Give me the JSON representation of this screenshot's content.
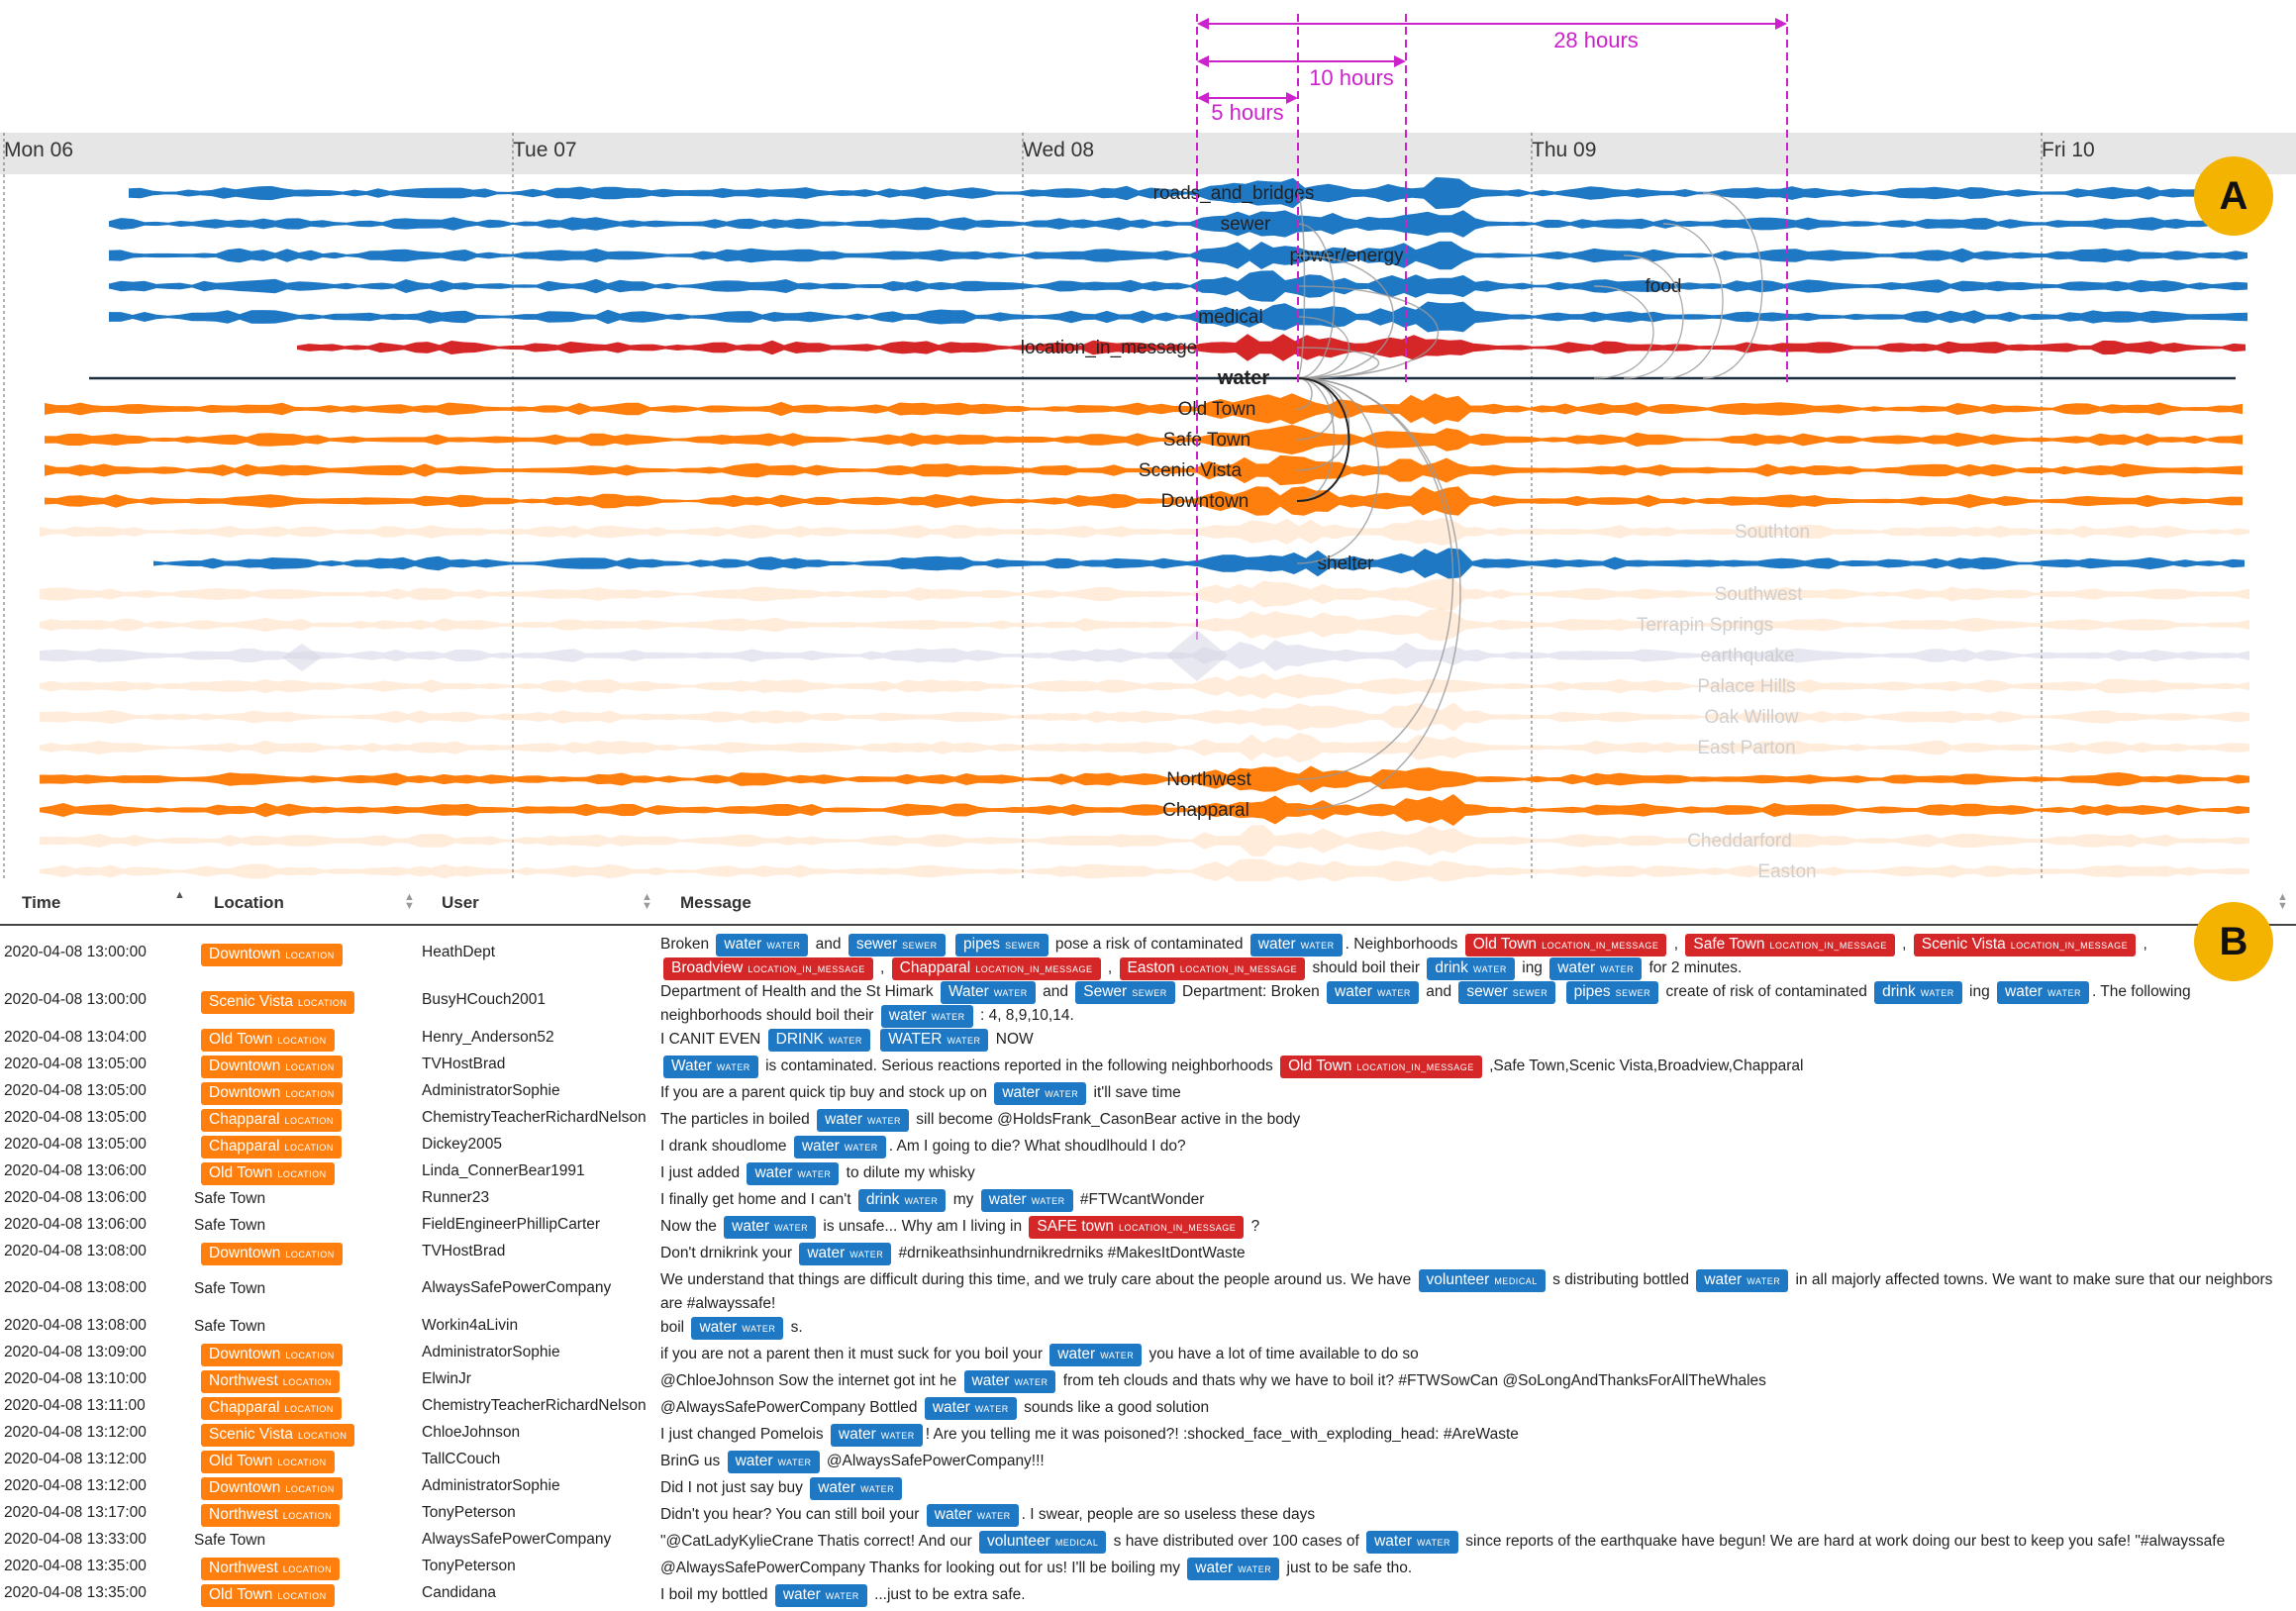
{
  "axis": {
    "days": [
      "Mon 06",
      "Tue 07",
      "Wed 08",
      "Thu 09",
      "Fri 10"
    ]
  },
  "annotations": {
    "spans": [
      "28 hours",
      "10 hours",
      "5 hours"
    ],
    "panel_a": "A",
    "panel_b": "B"
  },
  "streams": {
    "labels": [
      "roads_and_bridges",
      "sewer",
      "power/energy",
      "food",
      "medical",
      "location_in_message",
      "water",
      "Old Town",
      "Safe Town",
      "Scenic Vista",
      "Downtown",
      "Southton",
      "shelter",
      "Southwest",
      "Terrapin Springs",
      "earthquake",
      "Palace Hills",
      "Oak Willow",
      "East Parton",
      "Northwest",
      "Chapparal",
      "Cheddarford",
      "Easton"
    ]
  },
  "colors": {
    "topic": "#1f78c4",
    "location_in_message": "#d62728",
    "location": "#ff7f0e",
    "dashed_marker": "#cc22cc",
    "badge": "#f5b301"
  },
  "table": {
    "headers": {
      "time": "Time",
      "location": "Location",
      "user": "User",
      "message": "Message"
    },
    "location_tag": "location",
    "rows": [
      {
        "time": "2020-04-08 13:00:00",
        "location": "Downtown",
        "loc_tagged": true,
        "user": "HeathDept",
        "msg": [
          [
            "t",
            "Broken "
          ],
          [
            "b",
            "water",
            "water"
          ],
          [
            "t",
            " and "
          ],
          [
            "b",
            "sewer",
            "sewer"
          ],
          [
            "t",
            " "
          ],
          [
            "b",
            "pipes",
            "sewer"
          ],
          [
            "t",
            " pose a risk of contaminated "
          ],
          [
            "b",
            "water",
            "water"
          ],
          [
            "t",
            ". Neighborhoods "
          ],
          [
            "r",
            "Old Town",
            "location_in_message"
          ],
          [
            "t",
            " , "
          ],
          [
            "r",
            "Safe Town",
            "location_in_message"
          ],
          [
            "t",
            " , "
          ],
          [
            "r",
            "Scenic Vista",
            "location_in_message"
          ],
          [
            "t",
            " , "
          ],
          [
            "r",
            "Broadview",
            "location_in_message"
          ],
          [
            "t",
            " , "
          ],
          [
            "r",
            "Chapparal",
            "location_in_message"
          ],
          [
            "t",
            " , "
          ],
          [
            "r",
            "Easton",
            "location_in_message"
          ],
          [
            "t",
            " should boil their "
          ],
          [
            "b",
            "drink",
            "water"
          ],
          [
            "t",
            " ing "
          ],
          [
            "b",
            "water",
            "water"
          ],
          [
            "t",
            " for 2 minutes."
          ]
        ]
      },
      {
        "time": "2020-04-08 13:00:00",
        "location": "Scenic Vista",
        "loc_tagged": true,
        "user": "BusyHCouch2001",
        "msg": [
          [
            "t",
            "Department of Health and the St Himark "
          ],
          [
            "b",
            "Water",
            "water"
          ],
          [
            "t",
            " and "
          ],
          [
            "b",
            "Sewer",
            "sewer"
          ],
          [
            "t",
            " Department: Broken "
          ],
          [
            "b",
            "water",
            "water"
          ],
          [
            "t",
            " and "
          ],
          [
            "b",
            "sewer",
            "sewer"
          ],
          [
            "t",
            " "
          ],
          [
            "b",
            "pipes",
            "sewer"
          ],
          [
            "t",
            " create of risk of contaminated "
          ],
          [
            "b",
            "drink",
            "water"
          ],
          [
            "t",
            " ing "
          ],
          [
            "b",
            "water",
            "water"
          ],
          [
            "t",
            ". The following neighborhoods should boil their "
          ],
          [
            "b",
            "water",
            "water"
          ],
          [
            "t",
            " : 4, 8,9,10,14."
          ]
        ]
      },
      {
        "time": "2020-04-08 13:04:00",
        "location": "Old Town",
        "loc_tagged": true,
        "user": "Henry_Anderson52",
        "msg": [
          [
            "t",
            "I CANIT EVEN "
          ],
          [
            "b",
            "DRINK",
            "water"
          ],
          [
            "t",
            " "
          ],
          [
            "b",
            "WATER",
            "water"
          ],
          [
            "t",
            " NOW"
          ]
        ]
      },
      {
        "time": "2020-04-08 13:05:00",
        "location": "Downtown",
        "loc_tagged": true,
        "user": "TVHostBrad",
        "msg": [
          [
            "b",
            "Water",
            "water"
          ],
          [
            "t",
            " is contaminated. Serious reactions reported in the following neighborhoods "
          ],
          [
            "r",
            "Old Town",
            "location_in_message"
          ],
          [
            "t",
            " ,Safe Town,Scenic Vista,Broadview,Chapparal"
          ]
        ]
      },
      {
        "time": "2020-04-08 13:05:00",
        "location": "Downtown",
        "loc_tagged": true,
        "user": "AdministratorSophie",
        "msg": [
          [
            "t",
            "If you are a parent quick tip buy and stock up on "
          ],
          [
            "b",
            "water",
            "water"
          ],
          [
            "t",
            " it'll save time"
          ]
        ]
      },
      {
        "time": "2020-04-08 13:05:00",
        "location": "Chapparal",
        "loc_tagged": true,
        "user": "ChemistryTeacherRichardNelson",
        "msg": [
          [
            "t",
            "The particles in boiled "
          ],
          [
            "b",
            "water",
            "water"
          ],
          [
            "t",
            " sill become @HoldsFrank_CasonBear active in the body"
          ]
        ]
      },
      {
        "time": "2020-04-08 13:05:00",
        "location": "Chapparal",
        "loc_tagged": true,
        "user": "Dickey2005",
        "msg": [
          [
            "t",
            "I drank shoudlome "
          ],
          [
            "b",
            "water",
            "water"
          ],
          [
            "t",
            ". Am I going to die? What shoudlhould I do?"
          ]
        ]
      },
      {
        "time": "2020-04-08 13:06:00",
        "location": "Old Town",
        "loc_tagged": true,
        "user": "Linda_ConnerBear1991",
        "msg": [
          [
            "t",
            "I just added "
          ],
          [
            "b",
            "water",
            "water"
          ],
          [
            "t",
            " to dilute my whisky"
          ]
        ]
      },
      {
        "time": "2020-04-08 13:06:00",
        "location": "Safe Town",
        "loc_tagged": false,
        "user": "Runner23",
        "msg": [
          [
            "t",
            "I finally get home and I can't "
          ],
          [
            "b",
            "drink",
            "water"
          ],
          [
            "t",
            " my "
          ],
          [
            "b",
            "water",
            "water"
          ],
          [
            "t",
            " #FTWcantWonder"
          ]
        ]
      },
      {
        "time": "2020-04-08 13:06:00",
        "location": "Safe Town",
        "loc_tagged": false,
        "user": "FieldEngineerPhillipCarter",
        "msg": [
          [
            "t",
            "Now the "
          ],
          [
            "b",
            "water",
            "water"
          ],
          [
            "t",
            " is unsafe... Why am I living in "
          ],
          [
            "r",
            "SAFE town",
            "location_in_message"
          ],
          [
            "t",
            " ?"
          ]
        ]
      },
      {
        "time": "2020-04-08 13:08:00",
        "location": "Downtown",
        "loc_tagged": true,
        "user": "TVHostBrad",
        "msg": [
          [
            "t",
            "Don't drnikrink your "
          ],
          [
            "b",
            "water",
            "water"
          ],
          [
            "t",
            " #drnikeathsinhundrnikredrniks #MakesItDontWaste"
          ]
        ]
      },
      {
        "time": "2020-04-08 13:08:00",
        "location": "Safe Town",
        "loc_tagged": false,
        "user": "AlwaysSafePowerCompany",
        "msg": [
          [
            "t",
            "We understand that things are difficult during this time, and we truly care about the people around us. We have "
          ],
          [
            "b",
            "volunteer",
            "medical"
          ],
          [
            "t",
            " s distributing bottled "
          ],
          [
            "b",
            "water",
            "water"
          ],
          [
            "t",
            " in all majorly affected towns. We want to make sure that our neighbors are #alwayssafe!"
          ]
        ]
      },
      {
        "time": "2020-04-08 13:08:00",
        "location": "Safe Town",
        "loc_tagged": false,
        "user": "Workin4aLivin",
        "msg": [
          [
            "t",
            "boil "
          ],
          [
            "b",
            "water",
            "water"
          ],
          [
            "t",
            " s."
          ]
        ]
      },
      {
        "time": "2020-04-08 13:09:00",
        "location": "Downtown",
        "loc_tagged": true,
        "user": "AdministratorSophie",
        "msg": [
          [
            "t",
            "if you are not a parent then it must suck for you boil your "
          ],
          [
            "b",
            "water",
            "water"
          ],
          [
            "t",
            " you have a lot of time available to do so"
          ]
        ]
      },
      {
        "time": "2020-04-08 13:10:00",
        "location": "Northwest",
        "loc_tagged": true,
        "user": "ElwinJr",
        "msg": [
          [
            "t",
            "@ChloeJohnson Sow the internet got int he "
          ],
          [
            "b",
            "water",
            "water"
          ],
          [
            "t",
            " from teh clouds and thats why we have to boil it? #FTWSowCan @SoLongAndThanksForAllTheWhales"
          ]
        ]
      },
      {
        "time": "2020-04-08 13:11:00",
        "location": "Chapparal",
        "loc_tagged": true,
        "user": "ChemistryTeacherRichardNelson",
        "msg": [
          [
            "t",
            "@AlwaysSafePowerCompany Bottled "
          ],
          [
            "b",
            "water",
            "water"
          ],
          [
            "t",
            " sounds like a good solution"
          ]
        ]
      },
      {
        "time": "2020-04-08 13:12:00",
        "location": "Scenic Vista",
        "loc_tagged": true,
        "user": "ChloeJohnson",
        "msg": [
          [
            "t",
            "I just changed Pomelois "
          ],
          [
            "b",
            "water",
            "water"
          ],
          [
            "t",
            "! Are you telling me it was poisoned?! :shocked_face_with_exploding_head: #AreWaste"
          ]
        ]
      },
      {
        "time": "2020-04-08 13:12:00",
        "location": "Old Town",
        "loc_tagged": true,
        "user": "TallCCouch",
        "msg": [
          [
            "t",
            "BrinG us "
          ],
          [
            "b",
            "water",
            "water"
          ],
          [
            "t",
            " @AlwaysSafePowerCompany!!!"
          ]
        ]
      },
      {
        "time": "2020-04-08 13:12:00",
        "location": "Downtown",
        "loc_tagged": true,
        "user": "AdministratorSophie",
        "msg": [
          [
            "t",
            "Did I not just say buy "
          ],
          [
            "b",
            "water",
            "water"
          ]
        ]
      },
      {
        "time": "2020-04-08 13:17:00",
        "location": "Northwest",
        "loc_tagged": true,
        "user": "TonyPeterson",
        "msg": [
          [
            "t",
            "Didn't you hear? You can still boil your "
          ],
          [
            "b",
            "water",
            "water"
          ],
          [
            "t",
            ". I swear, people are so useless these days"
          ]
        ]
      },
      {
        "time": "2020-04-08 13:33:00",
        "location": "Safe Town",
        "loc_tagged": false,
        "user": "AlwaysSafePowerCompany",
        "msg": [
          [
            "t",
            "\"@CatLadyKylieCrane Thatis correct! And our "
          ],
          [
            "b",
            "volunteer",
            "medical"
          ],
          [
            "t",
            " s have distributed over 100 cases of "
          ],
          [
            "b",
            "water",
            "water"
          ],
          [
            "t",
            " since reports of the earthquake have begun! We are hard at work doing our best to keep you safe! \"#alwayssafe"
          ]
        ]
      },
      {
        "time": "2020-04-08 13:35:00",
        "location": "Northwest",
        "loc_tagged": true,
        "user": "TonyPeterson",
        "msg": [
          [
            "t",
            "@AlwaysSafePowerCompany Thanks for looking out for us! I'll be boiling my "
          ],
          [
            "b",
            "water",
            "water"
          ],
          [
            "t",
            " just to be safe tho."
          ]
        ]
      },
      {
        "time": "2020-04-08 13:35:00",
        "location": "Old Town",
        "loc_tagged": true,
        "user": "Candidana",
        "msg": [
          [
            "t",
            "I boil my bottled "
          ],
          [
            "b",
            "water",
            "water"
          ],
          [
            "t",
            " ...just to be extra safe."
          ]
        ]
      }
    ]
  }
}
